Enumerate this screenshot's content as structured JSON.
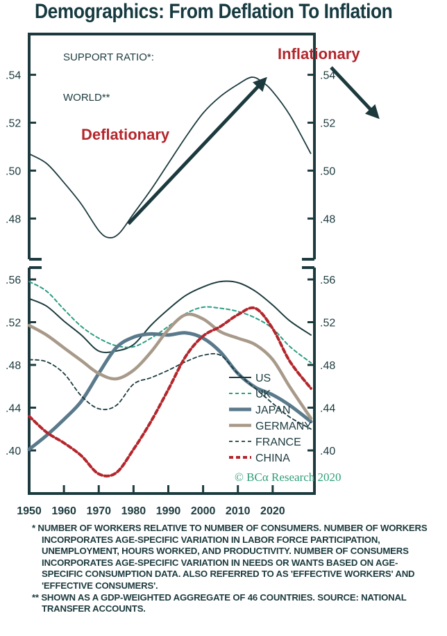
{
  "title": "Demographics: From Deflation To Inflation",
  "colors": {
    "frame": "#1c3a3e",
    "annot_red": "#b3262c",
    "watermark": "#2e9e7a"
  },
  "chart_data": [
    {
      "type": "line",
      "name": "world",
      "labels": {
        "series_label_1": "SUPPORT RATIO*:",
        "series_label_2": "WORLD**"
      },
      "annotations": {
        "deflationary": "Deflationary",
        "inflationary": "Inflationary"
      },
      "yticks": [
        ".54",
        ".52",
        ".50",
        ".48"
      ],
      "ytick_values": [
        0.54,
        0.52,
        0.5,
        0.48
      ],
      "ylim": [
        0.463,
        0.557
      ],
      "xlim": [
        1950,
        2032
      ],
      "series": [
        {
          "name": "World",
          "color": "#1c3a3e",
          "x": [
            1950,
            1955,
            1960,
            1965,
            1970,
            1973,
            1976,
            1980,
            1985,
            1990,
            1995,
            2000,
            2005,
            2010,
            2014,
            2017,
            2020,
            2025,
            2031
          ],
          "values": [
            0.507,
            0.503,
            0.495,
            0.486,
            0.475,
            0.472,
            0.474,
            0.482,
            0.492,
            0.503,
            0.514,
            0.524,
            0.531,
            0.536,
            0.539,
            0.537,
            0.533,
            0.523,
            0.507
          ]
        }
      ]
    },
    {
      "type": "line",
      "name": "countries",
      "yticks": [
        ".56",
        ".52",
        ".48",
        ".44",
        ".40"
      ],
      "ytick_values": [
        0.56,
        0.52,
        0.48,
        0.44,
        0.4
      ],
      "xticks": [
        "1950",
        "1960",
        "1970",
        "1980",
        "1990",
        "2000",
        "2010",
        "2020"
      ],
      "xtick_values": [
        1950,
        1960,
        1970,
        1980,
        1990,
        2000,
        2010,
        2020
      ],
      "xlim": [
        1950,
        2032
      ],
      "ylim": [
        0.549,
        0.357
      ],
      "legend_position": "center-right",
      "watermark": "© BCα Research 2020",
      "x": [
        1950,
        1955,
        1960,
        1965,
        1970,
        1975,
        1980,
        1985,
        1990,
        1995,
        2000,
        2005,
        2010,
        2015,
        2020,
        2025,
        2031
      ],
      "series": [
        {
          "name": "US",
          "color": "#1c3a3e",
          "width": 2,
          "dash": "",
          "values": [
            0.542,
            0.535,
            0.521,
            0.508,
            0.493,
            0.493,
            0.499,
            0.517,
            0.532,
            0.545,
            0.553,
            0.558,
            0.557,
            0.549,
            0.536,
            0.521,
            0.508
          ]
        },
        {
          "name": "UK",
          "color": "#2a9d82",
          "width": 2,
          "dash": "5,4",
          "values": [
            0.558,
            0.549,
            0.532,
            0.516,
            0.505,
            0.498,
            0.497,
            0.505,
            0.516,
            0.528,
            0.534,
            0.533,
            0.53,
            0.524,
            0.514,
            0.497,
            0.482
          ]
        },
        {
          "name": "JAPAN",
          "color": "#5a7a8c",
          "width": 5,
          "dash": "",
          "values": [
            0.401,
            0.414,
            0.429,
            0.446,
            0.472,
            0.496,
            0.506,
            0.509,
            0.508,
            0.51,
            0.505,
            0.492,
            0.472,
            0.459,
            0.452,
            0.442,
            0.427
          ]
        },
        {
          "name": "GERMANY",
          "color": "#a89a8a",
          "width": 4.5,
          "dash": "",
          "values": [
            0.517,
            0.508,
            0.496,
            0.484,
            0.472,
            0.467,
            0.475,
            0.492,
            0.513,
            0.527,
            0.523,
            0.511,
            0.505,
            0.499,
            0.485,
            0.459,
            0.43
          ]
        },
        {
          "name": "FRANCE",
          "color": "#1c3a3e",
          "width": 1.8,
          "dash": "5,4",
          "values": [
            0.485,
            0.483,
            0.472,
            0.451,
            0.439,
            0.442,
            0.462,
            0.468,
            0.475,
            0.483,
            0.489,
            0.489,
            0.472,
            0.458,
            0.444,
            0.431,
            0.42
          ]
        },
        {
          "name": "CHINA",
          "color": "#b3262c",
          "width": 4,
          "dash": "6,4",
          "values": [
            0.432,
            0.417,
            0.407,
            0.395,
            0.378,
            0.379,
            0.401,
            0.427,
            0.457,
            0.488,
            0.507,
            0.516,
            0.527,
            0.533,
            0.514,
            0.483,
            0.458
          ]
        }
      ]
    }
  ],
  "footnotes": [
    "* NUMBER OF WORKERS RELATIVE TO NUMBER OF CONSUMERS. NUMBER OF WORKERS INCORPORATES AGE-SPECIFIC VARIATION IN LABOR FORCE PARTICIPATION, UNEMPLOYMENT, HOURS WORKED, AND PRODUCTIVITY. NUMBER OF CONSUMERS INCORPORATES AGE-SPECIFIC VARIATION IN NEEDS OR WANTS BASED ON AGE-SPECIFIC CONSUMPTION DATA. ALSO REFERRED TO AS 'EFFECTIVE WORKERS' AND 'EFFECTIVE CONSUMERS'.",
    "** SHOWN AS A GDP-WEIGHTED AGGREGATE OF 46 COUNTRIES. SOURCE: NATIONAL TRANSFER ACCOUNTS."
  ]
}
